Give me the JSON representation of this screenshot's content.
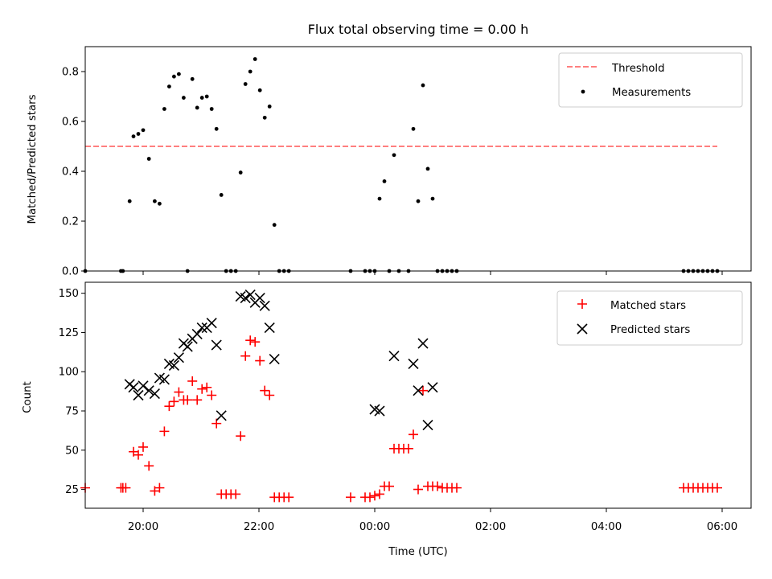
{
  "chart_data": [
    {
      "type": "scatter",
      "title": "Flux total observing time = 0.00 h",
      "ylabel": "Matched/Predicted stars",
      "xlabel": "",
      "xlim": [
        "19:00",
        "06:30"
      ],
      "ylim": [
        0.0,
        0.9
      ],
      "yticks": [
        "0.0",
        "0.2",
        "0.4",
        "0.6",
        "0.8"
      ],
      "legend_position": "top-right",
      "grid": false,
      "threshold": {
        "name": "Threshold",
        "value": 0.5,
        "x_range": [
          "19:00",
          "05:55"
        ],
        "color": "#ff7f7f"
      },
      "series": [
        {
          "name": "Measurements",
          "color": "#000000",
          "points": [
            [
              "19:00",
              0
            ],
            [
              "19:37",
              0
            ],
            [
              "19:39",
              0
            ],
            [
              "19:46",
              0.28
            ],
            [
              "19:50",
              0.54
            ],
            [
              "19:55",
              0.55
            ],
            [
              "20:00",
              0.565
            ],
            [
              "20:06",
              0.45
            ],
            [
              "20:12",
              0.28
            ],
            [
              "20:17",
              0.27
            ],
            [
              "20:22",
              0.65
            ],
            [
              "20:27",
              0.74
            ],
            [
              "20:32",
              0.78
            ],
            [
              "20:37",
              0.79
            ],
            [
              "20:42",
              0.695
            ],
            [
              "20:46",
              0
            ],
            [
              "20:51",
              0.77
            ],
            [
              "20:56",
              0.655
            ],
            [
              "21:01",
              0.695
            ],
            [
              "21:06",
              0.7
            ],
            [
              "21:11",
              0.65
            ],
            [
              "21:16",
              0.57
            ],
            [
              "21:21",
              0.305
            ],
            [
              "21:26",
              0
            ],
            [
              "21:31",
              0
            ],
            [
              "21:36",
              0
            ],
            [
              "21:41",
              0.395
            ],
            [
              "21:46",
              0.75
            ],
            [
              "21:51",
              0.8
            ],
            [
              "21:56",
              0.85
            ],
            [
              "22:01",
              0.725
            ],
            [
              "22:06",
              0.615
            ],
            [
              "22:11",
              0.66
            ],
            [
              "22:16",
              0.185
            ],
            [
              "22:21",
              0
            ],
            [
              "22:26",
              0
            ],
            [
              "22:31",
              0
            ],
            [
              "23:35",
              0
            ],
            [
              "23:50",
              0
            ],
            [
              "23:55",
              0
            ],
            [
              "00:00",
              0
            ],
            [
              "00:05",
              0.29
            ],
            [
              "00:10",
              0.36
            ],
            [
              "00:15",
              0
            ],
            [
              "00:20",
              0.465
            ],
            [
              "00:25",
              0
            ],
            [
              "00:35",
              0
            ],
            [
              "00:40",
              0.57
            ],
            [
              "00:45",
              0.28
            ],
            [
              "00:50",
              0.745
            ],
            [
              "00:55",
              0.41
            ],
            [
              "01:00",
              0.29
            ],
            [
              "01:05",
              0
            ],
            [
              "01:10",
              0
            ],
            [
              "01:15",
              0
            ],
            [
              "01:20",
              0
            ],
            [
              "01:25",
              0
            ],
            [
              "05:20",
              0
            ],
            [
              "05:25",
              0
            ],
            [
              "05:30",
              0
            ],
            [
              "05:35",
              0
            ],
            [
              "05:40",
              0
            ],
            [
              "05:45",
              0
            ],
            [
              "05:50",
              0
            ],
            [
              "05:55",
              0
            ]
          ]
        }
      ]
    },
    {
      "type": "scatter",
      "title": "",
      "xlabel": "Time (UTC)",
      "ylabel": "Count",
      "xlim": [
        "19:00",
        "06:30"
      ],
      "ylim": [
        13,
        157
      ],
      "xticks": [
        "20:00",
        "22:00",
        "00:00",
        "02:00",
        "04:00",
        "06:00"
      ],
      "yticks": [
        "25",
        "50",
        "75",
        "100",
        "125",
        "150"
      ],
      "legend_position": "top-right",
      "grid": false,
      "series": [
        {
          "name": "Matched stars",
          "color": "#ff0000",
          "marker": "plus",
          "points": [
            [
              "19:00",
              26
            ],
            [
              "19:37",
              26
            ],
            [
              "19:39",
              26
            ],
            [
              "19:42",
              26
            ],
            [
              "19:50",
              49
            ],
            [
              "19:55",
              47
            ],
            [
              "20:00",
              52
            ],
            [
              "20:06",
              40
            ],
            [
              "20:12",
              24
            ],
            [
              "20:17",
              26
            ],
            [
              "20:22",
              62
            ],
            [
              "20:27",
              78
            ],
            [
              "20:32",
              81
            ],
            [
              "20:37",
              87
            ],
            [
              "20:42",
              82
            ],
            [
              "20:46",
              82
            ],
            [
              "20:51",
              94
            ],
            [
              "20:56",
              82
            ],
            [
              "21:01",
              89
            ],
            [
              "21:06",
              90
            ],
            [
              "21:11",
              85
            ],
            [
              "21:16",
              67
            ],
            [
              "21:21",
              22
            ],
            [
              "21:26",
              22
            ],
            [
              "21:31",
              22
            ],
            [
              "21:36",
              22
            ],
            [
              "21:41",
              59
            ],
            [
              "21:46",
              110
            ],
            [
              "21:51",
              120
            ],
            [
              "21:56",
              119
            ],
            [
              "22:01",
              107
            ],
            [
              "22:06",
              88
            ],
            [
              "22:11",
              85
            ],
            [
              "22:16",
              20
            ],
            [
              "22:21",
              20
            ],
            [
              "22:26",
              20
            ],
            [
              "22:31",
              20
            ],
            [
              "23:35",
              20
            ],
            [
              "23:50",
              20
            ],
            [
              "23:55",
              20
            ],
            [
              "00:00",
              21
            ],
            [
              "00:05",
              22
            ],
            [
              "00:10",
              27
            ],
            [
              "00:15",
              27
            ],
            [
              "00:20",
              51
            ],
            [
              "00:25",
              51
            ],
            [
              "00:30",
              51
            ],
            [
              "00:35",
              51
            ],
            [
              "00:40",
              60
            ],
            [
              "00:45",
              25
            ],
            [
              "00:50",
              88
            ],
            [
              "00:55",
              27
            ],
            [
              "01:00",
              27
            ],
            [
              "01:05",
              27
            ],
            [
              "01:10",
              26
            ],
            [
              "01:15",
              26
            ],
            [
              "01:20",
              26
            ],
            [
              "01:25",
              26
            ],
            [
              "05:20",
              26
            ],
            [
              "05:25",
              26
            ],
            [
              "05:30",
              26
            ],
            [
              "05:35",
              26
            ],
            [
              "05:40",
              26
            ],
            [
              "05:45",
              26
            ],
            [
              "05:50",
              26
            ],
            [
              "05:55",
              26
            ]
          ]
        },
        {
          "name": "Predicted stars",
          "color": "#000000",
          "marker": "x",
          "points": [
            [
              "19:46",
              92
            ],
            [
              "19:50",
              90
            ],
            [
              "19:55",
              85
            ],
            [
              "20:00",
              91
            ],
            [
              "20:06",
              88
            ],
            [
              "20:12",
              86
            ],
            [
              "20:17",
              96
            ],
            [
              "20:22",
              95
            ],
            [
              "20:27",
              105
            ],
            [
              "20:32",
              104
            ],
            [
              "20:37",
              109
            ],
            [
              "20:42",
              118
            ],
            [
              "20:46",
              116
            ],
            [
              "20:51",
              121
            ],
            [
              "20:56",
              124
            ],
            [
              "21:01",
              128
            ],
            [
              "21:06",
              128
            ],
            [
              "21:11",
              131
            ],
            [
              "21:16",
              117
            ],
            [
              "21:21",
              72
            ],
            [
              "21:41",
              148
            ],
            [
              "21:46",
              147
            ],
            [
              "21:51",
              149
            ],
            [
              "21:56",
              144
            ],
            [
              "22:01",
              147
            ],
            [
              "22:06",
              142
            ],
            [
              "22:11",
              128
            ],
            [
              "22:16",
              108
            ],
            [
              "00:00",
              76
            ],
            [
              "00:05",
              75
            ],
            [
              "00:20",
              110
            ],
            [
              "00:40",
              105
            ],
            [
              "00:45",
              88
            ],
            [
              "00:50",
              118
            ],
            [
              "00:55",
              66
            ],
            [
              "01:00",
              90
            ]
          ]
        }
      ]
    }
  ]
}
